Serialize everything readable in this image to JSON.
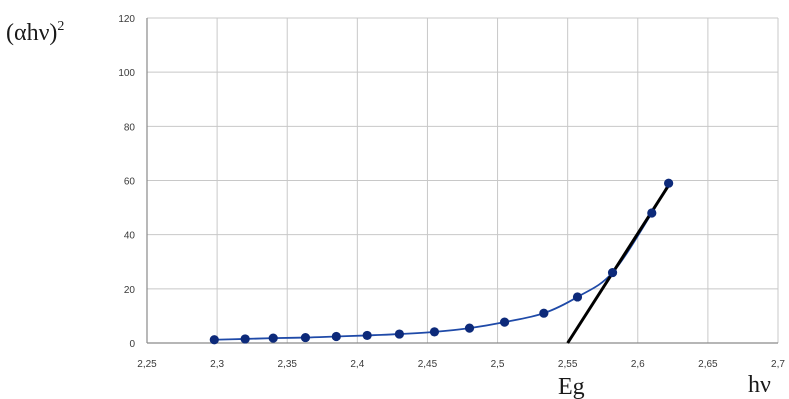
{
  "chart_data": {
    "type": "scatter",
    "ylabel": "(αhν)",
    "ylabel_superscript": "2",
    "xlabel": "hν",
    "annotation": "Eg",
    "xlim": [
      2.25,
      2.7
    ],
    "ylim": [
      0,
      120
    ],
    "x_ticks": [
      "2,25",
      "2,3",
      "2,35",
      "2,4",
      "2,45",
      "2,5",
      "2,55",
      "2,6",
      "2,65",
      "2,7"
    ],
    "y_ticks": [
      "0",
      "20",
      "40",
      "60",
      "80",
      "100",
      "120"
    ],
    "grid": true,
    "series": [
      {
        "color": "#0d2a7a",
        "marker": "circle",
        "x": [
          2.298,
          2.32,
          2.34,
          2.363,
          2.385,
          2.407,
          2.43,
          2.455,
          2.48,
          2.505,
          2.533,
          2.557,
          2.582,
          2.61,
          2.622
        ],
        "y": [
          1.2,
          1.5,
          1.8,
          2.0,
          2.4,
          2.8,
          3.3,
          4.1,
          5.5,
          7.7,
          11,
          17,
          26,
          48,
          59
        ]
      }
    ],
    "fit_line": {
      "color": "#000000",
      "x": [
        2.55,
        2.623
      ],
      "y": [
        0,
        59
      ]
    }
  }
}
